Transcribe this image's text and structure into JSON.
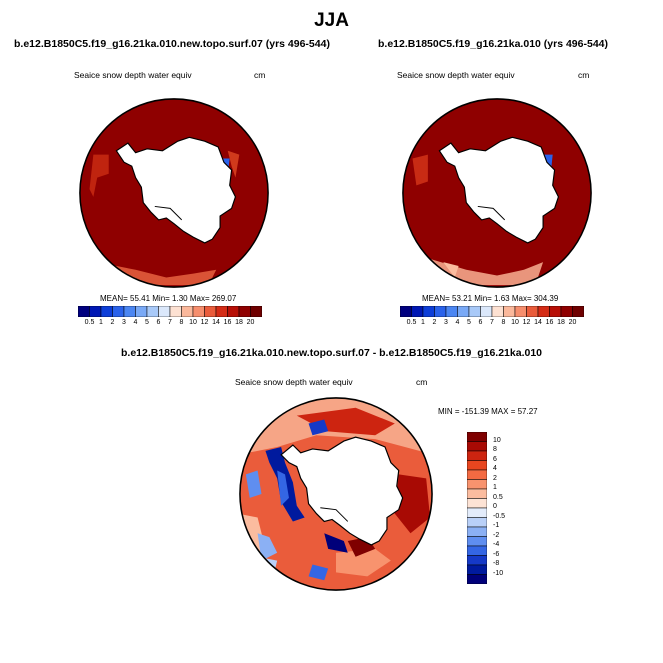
{
  "page": {
    "season": "JJA",
    "diff_title": "b.e12.B1850C5.f19_g16.21ka.010.new.topo.surf.07 - b.e12.B1850C5.f19_g16.21ka.010"
  },
  "panels": [
    {
      "title": "b.e12.B1850C5.f19_g16.21ka.010.new.topo.surf.07 (yrs 496-544)",
      "var_label": "Seaice snow depth water equiv",
      "units": "cm",
      "stats": "MEAN=  55.41  Min=   1.30  Max= 269.07"
    },
    {
      "title": "b.e12.B1850C5.f19_g16.21ka.010 (yrs 496-544)",
      "var_label": "Seaice snow depth water equiv",
      "units": "cm",
      "stats": "MEAN=  53.21  Min=   1.63  Max= 304.39"
    },
    {
      "var_label": "Seaice snow depth water equiv",
      "units": "cm",
      "stats": "MIN = -151.39 MAX =  57.27"
    }
  ],
  "colorbars": {
    "abs_levels": [
      "0.5",
      "1",
      "2",
      "3",
      "4",
      "5",
      "6",
      "7",
      "8",
      "10",
      "12",
      "14",
      "16",
      "18",
      "20"
    ],
    "abs_colors": [
      "#00007f",
      "#0018b4",
      "#0d3ed8",
      "#2a62ea",
      "#4b86f2",
      "#79a9f6",
      "#a8c9f8",
      "#dbe8fb",
      "#fde1d2",
      "#fbb89b",
      "#f68e6d",
      "#ea5c3b",
      "#d42c16",
      "#b70f06",
      "#8f0000",
      "#6f0000"
    ],
    "diff_levels": [
      "10",
      "8",
      "6",
      "4",
      "2",
      "1",
      "0.5",
      "0",
      "-0.5",
      "-1",
      "-2",
      "-4",
      "-6",
      "-8",
      "-10"
    ],
    "diff_colors": [
      "#7f0000",
      "#a80a04",
      "#cd2410",
      "#e8461f",
      "#f36a42",
      "#f8936e",
      "#fbbc9f",
      "#fde3d5",
      "#e3ecfb",
      "#b9d0f8",
      "#8bb0f4",
      "#5f8ef0",
      "#3466e4",
      "#1539c7",
      "#001a9e",
      "#00007a"
    ]
  }
}
